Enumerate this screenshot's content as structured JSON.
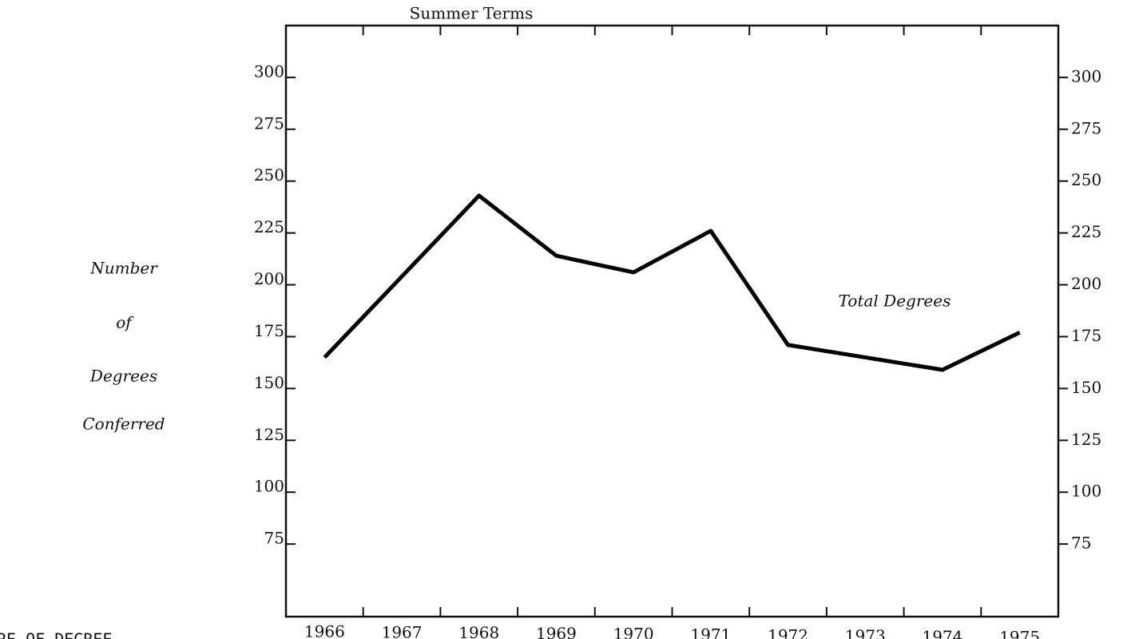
{
  "chart_data": {
    "type": "line",
    "title": "Summer Terms",
    "y_label_lines": [
      "Number",
      "of",
      "Degrees",
      "Conferred"
    ],
    "footer_text": "RE OF DEGREE",
    "categories": [
      "1966",
      "1967",
      "1968",
      "1969",
      "1970",
      "1971",
      "1972",
      "1973",
      "1974",
      "1975"
    ],
    "series": [
      {
        "name": "Total Degrees",
        "color": "#000000",
        "values": [
          165,
          204,
          243,
          214,
          206,
          226,
          171,
          165,
          159,
          177
        ]
      }
    ],
    "ylim": [
      40,
      325
    ],
    "yticks": [
      75,
      100,
      125,
      150,
      175,
      200,
      225,
      250,
      275,
      300
    ],
    "y2lim": [
      40,
      325
    ],
    "y2ticks": [
      75,
      100,
      125,
      150,
      175,
      200,
      225,
      250,
      275,
      300
    ],
    "grid": false
  }
}
